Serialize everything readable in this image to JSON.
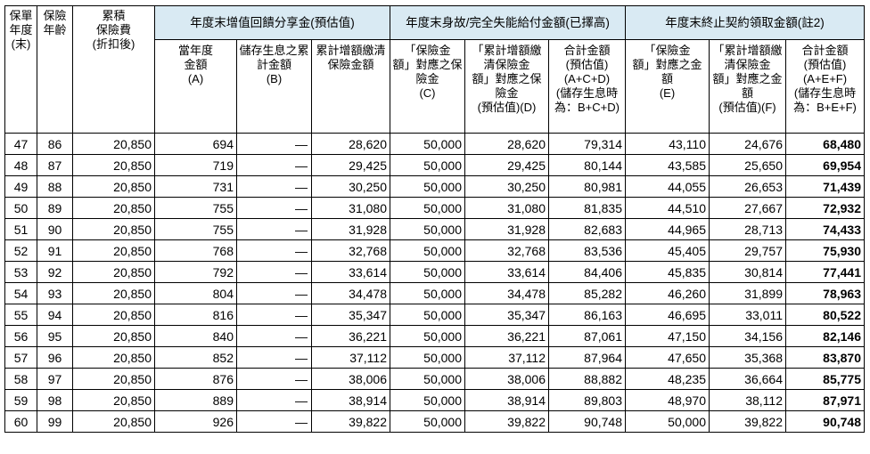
{
  "header": {
    "col_year": "保單\n年度\n(末)",
    "col_age": "保險\n年齡",
    "col_premium": "累積\n保險費\n(折扣後)",
    "group1": "年度末增值回饋分享金(預估值)",
    "group2": "年度末身故/完全失能給付金額(已擇高)",
    "group3": "年度末終止契約領取金額(註2)",
    "sub_a": "當年度\n金額\n(A)",
    "sub_b": "儲存生息之累\n計金額\n(B)",
    "sub_acc": "累計增額繳清\n保險金額",
    "sub_c": "「保險金\n額」對應之保\n險金\n(C)",
    "sub_d": "「累計增額繳\n清保險金\n額」對應之保\n險金\n(預估值)(D)",
    "sub_total1": "合計金額\n(預估值)\n(A+C+D)\n(儲存生息時\n為：B+C+D)",
    "sub_e": "「保險金\n額」對應之金\n額\n(E)",
    "sub_f": "「累計增額繳\n清保險金\n額」對應之金\n額\n(預估值)(F)",
    "sub_total2": "合計金額\n(預估值)\n(A+E+F)\n(儲存生息時\n為：B+E+F)"
  },
  "rows": [
    {
      "year": "47",
      "age": "86",
      "premium": "20,850",
      "a": "694",
      "b": "—",
      "acc": "28,620",
      "c": "50,000",
      "d": "28,620",
      "t1": "79,314",
      "e": "43,110",
      "f": "24,676",
      "t2": "68,480"
    },
    {
      "year": "48",
      "age": "87",
      "premium": "20,850",
      "a": "719",
      "b": "—",
      "acc": "29,425",
      "c": "50,000",
      "d": "29,425",
      "t1": "80,144",
      "e": "43,585",
      "f": "25,650",
      "t2": "69,954"
    },
    {
      "year": "49",
      "age": "88",
      "premium": "20,850",
      "a": "731",
      "b": "—",
      "acc": "30,250",
      "c": "50,000",
      "d": "30,250",
      "t1": "80,981",
      "e": "44,055",
      "f": "26,653",
      "t2": "71,439"
    },
    {
      "year": "50",
      "age": "89",
      "premium": "20,850",
      "a": "755",
      "b": "—",
      "acc": "31,080",
      "c": "50,000",
      "d": "31,080",
      "t1": "81,835",
      "e": "44,510",
      "f": "27,667",
      "t2": "72,932"
    },
    {
      "year": "51",
      "age": "90",
      "premium": "20,850",
      "a": "755",
      "b": "—",
      "acc": "31,928",
      "c": "50,000",
      "d": "31,928",
      "t1": "82,683",
      "e": "44,965",
      "f": "28,713",
      "t2": "74,433"
    },
    {
      "year": "52",
      "age": "91",
      "premium": "20,850",
      "a": "768",
      "b": "—",
      "acc": "32,768",
      "c": "50,000",
      "d": "32,768",
      "t1": "83,536",
      "e": "45,405",
      "f": "29,757",
      "t2": "75,930"
    },
    {
      "year": "53",
      "age": "92",
      "premium": "20,850",
      "a": "792",
      "b": "—",
      "acc": "33,614",
      "c": "50,000",
      "d": "33,614",
      "t1": "84,406",
      "e": "45,835",
      "f": "30,814",
      "t2": "77,441"
    },
    {
      "year": "54",
      "age": "93",
      "premium": "20,850",
      "a": "804",
      "b": "—",
      "acc": "34,478",
      "c": "50,000",
      "d": "34,478",
      "t1": "85,282",
      "e": "46,260",
      "f": "31,899",
      "t2": "78,963"
    },
    {
      "year": "55",
      "age": "94",
      "premium": "20,850",
      "a": "816",
      "b": "—",
      "acc": "35,347",
      "c": "50,000",
      "d": "35,347",
      "t1": "86,163",
      "e": "46,695",
      "f": "33,011",
      "t2": "80,522"
    },
    {
      "year": "56",
      "age": "95",
      "premium": "20,850",
      "a": "840",
      "b": "—",
      "acc": "36,221",
      "c": "50,000",
      "d": "36,221",
      "t1": "87,061",
      "e": "47,150",
      "f": "34,156",
      "t2": "82,146"
    },
    {
      "year": "57",
      "age": "96",
      "premium": "20,850",
      "a": "852",
      "b": "—",
      "acc": "37,112",
      "c": "50,000",
      "d": "37,112",
      "t1": "87,964",
      "e": "47,650",
      "f": "35,368",
      "t2": "83,870"
    },
    {
      "year": "58",
      "age": "97",
      "premium": "20,850",
      "a": "876",
      "b": "—",
      "acc": "38,006",
      "c": "50,000",
      "d": "38,006",
      "t1": "88,882",
      "e": "48,235",
      "f": "36,664",
      "t2": "85,775"
    },
    {
      "year": "59",
      "age": "98",
      "premium": "20,850",
      "a": "889",
      "b": "—",
      "acc": "38,914",
      "c": "50,000",
      "d": "38,914",
      "t1": "89,803",
      "e": "48,970",
      "f": "38,112",
      "t2": "87,971"
    },
    {
      "year": "60",
      "age": "99",
      "premium": "20,850",
      "a": "926",
      "b": "—",
      "acc": "39,822",
      "c": "50,000",
      "d": "39,822",
      "t1": "90,748",
      "e": "50,000",
      "f": "39,822",
      "t2": "90,748"
    }
  ]
}
